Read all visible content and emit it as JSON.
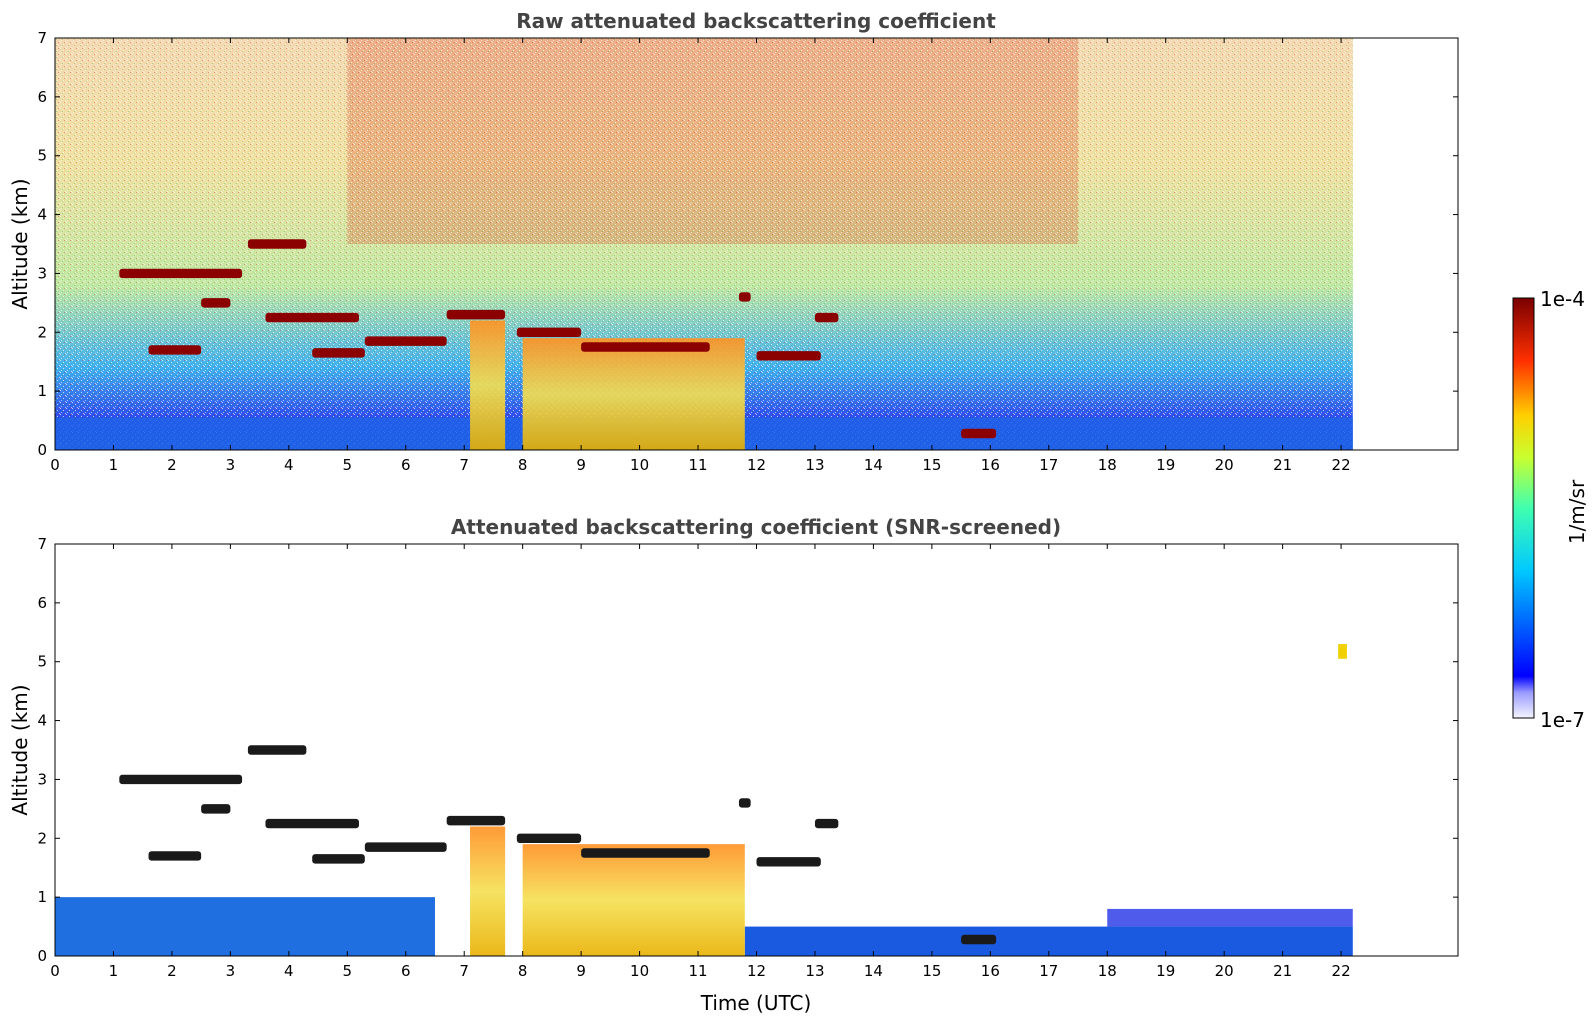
{
  "chart_data": [
    {
      "type": "heatmap",
      "title": "Raw attenuated backscattering coefficient",
      "xlabel": "",
      "ylabel": "Altitude (km)",
      "xlim": [
        0,
        24
      ],
      "ylim": [
        0,
        7
      ],
      "x_ticks": [
        "0",
        "1",
        "2",
        "3",
        "4",
        "5",
        "6",
        "7",
        "8",
        "9",
        "10",
        "11",
        "12",
        "13",
        "14",
        "15",
        "16",
        "17",
        "18",
        "19",
        "20",
        "21",
        "22"
      ],
      "y_ticks": [
        "0",
        "1",
        "2",
        "3",
        "4",
        "5",
        "6",
        "7"
      ],
      "data_end_hour": 22.2,
      "grid": false,
      "features": [
        {
          "kind": "cloud_layer",
          "t0": 1.1,
          "t1": 3.2,
          "alt": 3.0
        },
        {
          "kind": "cloud_layer",
          "t0": 3.3,
          "t1": 4.3,
          "alt": 3.5
        },
        {
          "kind": "cloud_layer",
          "t0": 2.5,
          "t1": 3.0,
          "alt": 2.5
        },
        {
          "kind": "cloud_layer",
          "t0": 3.6,
          "t1": 5.2,
          "alt": 2.25
        },
        {
          "kind": "cloud_layer",
          "t0": 1.6,
          "t1": 2.5,
          "alt": 1.7
        },
        {
          "kind": "cloud_layer",
          "t0": 4.4,
          "t1": 5.3,
          "alt": 1.65
        },
        {
          "kind": "cloud_layer",
          "t0": 5.3,
          "t1": 6.7,
          "alt": 1.85
        },
        {
          "kind": "cloud_layer",
          "t0": 6.7,
          "t1": 7.7,
          "alt": 2.3
        },
        {
          "kind": "cloud_layer",
          "t0": 7.9,
          "t1": 9.0,
          "alt": 2.0
        },
        {
          "kind": "cloud_layer",
          "t0": 9.0,
          "t1": 11.2,
          "alt": 1.75
        },
        {
          "kind": "cloud_layer",
          "t0": 11.7,
          "t1": 11.9,
          "alt": 2.6
        },
        {
          "kind": "cloud_layer",
          "t0": 12.0,
          "t1": 13.1,
          "alt": 1.6
        },
        {
          "kind": "cloud_layer",
          "t0": 13.0,
          "t1": 13.4,
          "alt": 2.25
        },
        {
          "kind": "cloud_layer",
          "t0": 15.5,
          "t1": 16.1,
          "alt": 0.28
        },
        {
          "kind": "precipitation",
          "t0": 7.1,
          "t1": 7.7,
          "top": 2.2
        },
        {
          "kind": "precipitation",
          "t0": 8.0,
          "t1": 11.8,
          "top": 1.9
        }
      ]
    },
    {
      "type": "heatmap",
      "title": "Attenuated backscattering coefficient (SNR-screened)",
      "xlabel": "Time (UTC)",
      "ylabel": "Altitude (km)",
      "xlim": [
        0,
        24
      ],
      "ylim": [
        0,
        7
      ],
      "x_ticks": [
        "0",
        "1",
        "2",
        "3",
        "4",
        "5",
        "6",
        "7",
        "8",
        "9",
        "10",
        "11",
        "12",
        "13",
        "14",
        "15",
        "16",
        "17",
        "18",
        "19",
        "20",
        "21",
        "22"
      ],
      "y_ticks": [
        "0",
        "1",
        "2",
        "3",
        "4",
        "5",
        "6",
        "7"
      ],
      "data_end_hour": 22.2,
      "grid": false
    }
  ],
  "colorbar": {
    "label": "1/m/sr",
    "max_label": "1e-4",
    "min_label": "1e-7",
    "colormap": "jet",
    "scale": "log",
    "range": [
      1e-07,
      0.0001
    ]
  },
  "colors": {
    "title": "#444444",
    "cloud": "#8b0000",
    "cloud_screened": "#1a1a1a"
  }
}
